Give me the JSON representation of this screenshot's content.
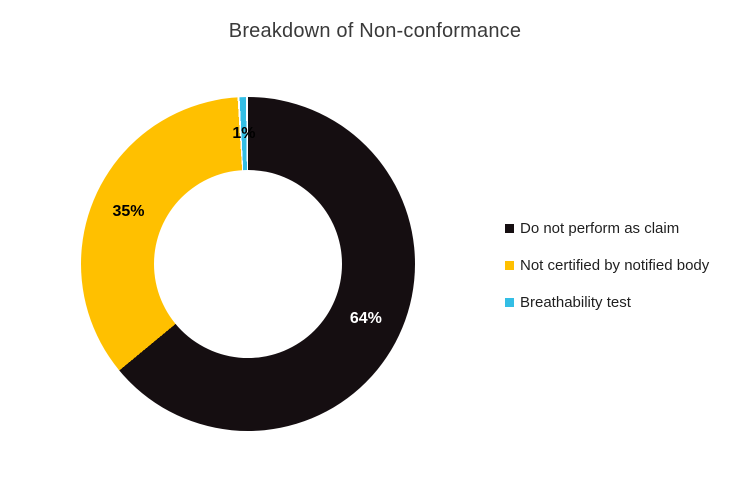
{
  "chart_data": {
    "type": "pie",
    "subtype": "donut",
    "title": "Breakdown of Non-conformance",
    "donut_hole_ratio": 0.56,
    "start_angle_deg": 0,
    "direction": "clockwise",
    "legend_position": "right",
    "data_labels_shown": true,
    "series": [
      {
        "name": "Do not perform as claim",
        "value": 64,
        "label": "64%",
        "color": "#150E11",
        "label_color": "#FFFFFF",
        "separator": false
      },
      {
        "name": "Not certified by notified body",
        "value": 35,
        "label": "35%",
        "color": "#FFC000",
        "label_color": "#000000",
        "separator": false
      },
      {
        "name": "Breathability test",
        "value": 1,
        "label": "1%",
        "color": "#33BEE5",
        "label_color": "#000000",
        "separator": true
      }
    ]
  },
  "colors": {
    "background": "#FFFFFF",
    "title_text": "#3A3A3A",
    "legend_text": "#1F1F1F",
    "separator": "#FFFFFF"
  }
}
